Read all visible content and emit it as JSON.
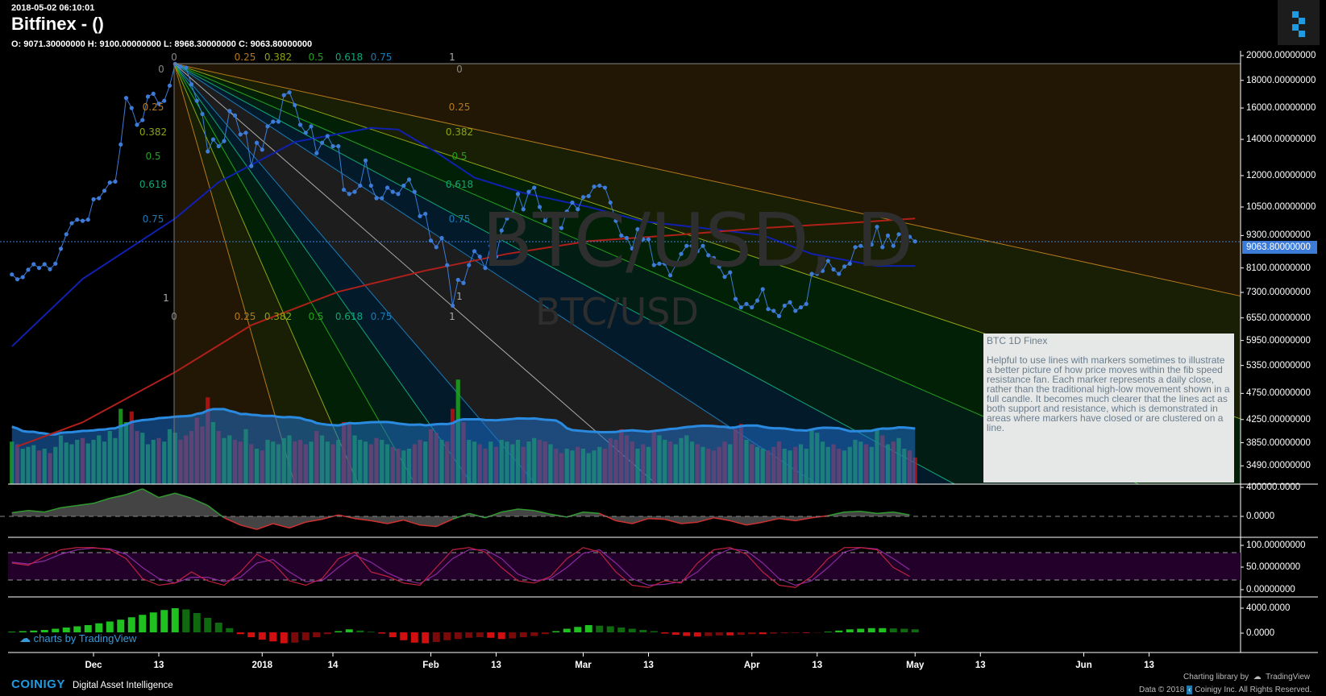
{
  "header": {
    "timestamp": "2018-05-02 06:10:01",
    "title": "Bitfinex -  ()",
    "ohlc": "O: 9071.30000000 H: 9100.00000000 L: 8968.30000000 C: 9063.80000000"
  },
  "watermark": {
    "main": "BTC/USD, D",
    "sub": "BTC/USD"
  },
  "colors": {
    "price_line": "#3d7bd9",
    "ma_fast": "#1020b0",
    "ma_slow": "#b0201a",
    "up": "#1fa51f",
    "down": "#c01010",
    "price_tag": "#3d7bd9"
  },
  "price_axis": {
    "labels": [
      "20000.00000000",
      "18000.00000000",
      "16000.00000000",
      "14000.00000000",
      "12000.00000000",
      "10500.00000000",
      "9300.00000000",
      "8100.00000000",
      "7300.00000000",
      "6550.00000000",
      "5950.00000000",
      "5350.00000000",
      "4750.00000000",
      "4250.00000000",
      "3850.00000000",
      "3490.00000000"
    ],
    "current": "9063.80000000",
    "scale": "log"
  },
  "pane_axes": {
    "osc1": [
      "400000.0000",
      "0.0000"
    ],
    "osc2": [
      "100.00000000",
      "50.00000000",
      "0.00000000"
    ],
    "osc3": [
      "4000.0000",
      "0.0000"
    ]
  },
  "x_axis": {
    "labels": [
      "Dec",
      "13",
      "2018",
      "14",
      "Feb",
      "13",
      "Mar",
      "13",
      "Apr",
      "13",
      "May",
      "13",
      "Jun",
      "13"
    ]
  },
  "fib_fan": {
    "levels": [
      "0",
      "0.25",
      "0.382",
      "0.5",
      "0.618",
      "0.75",
      "1"
    ],
    "colors": {
      "0.25": "#b5791b",
      "0.382": "#8fa314",
      "0.5": "#22a31c",
      "0.618": "#0fa67a",
      "0.75": "#1a7ab5",
      "1": "#aaaaaa",
      "0": "#888888"
    },
    "anchor_start": {
      "date": "2017-12-16",
      "price": 19300
    },
    "anchor_end": {
      "date": "2018-02-05",
      "price": 6900
    }
  },
  "note": {
    "title": "BTC 1D Finex",
    "body": "Helpful to use lines with markers sometimes to illustrate a better picture of how price moves within the fib speed resistance fan. Each marker represents a daily close, rather than the traditional high-low movement shown in a full candle. It becomes much clearer that the lines act as both support and resistance, which is demonstrated in areas where markers have closed or are clustered on a line."
  },
  "chart_data": {
    "type": "line",
    "start_date": "2017-11-16",
    "closes": [
      7880,
      7720,
      7790,
      8040,
      8230,
      8100,
      8230,
      8060,
      8250,
      8790,
      9350,
      9800,
      9950,
      9900,
      9950,
      10850,
      10900,
      11250,
      11650,
      11700,
      13700,
      16700,
      16000,
      14900,
      15200,
      16800,
      17000,
      16300,
      16500,
      17600,
      19300,
      19100,
      19000,
      17700,
      16500,
      15600,
      13300,
      14000,
      13600,
      13900,
      15800,
      15500,
      14300,
      14400,
      12500,
      13800,
      13400,
      14800,
      15100,
      15100,
      16900,
      17100,
      16200,
      14900,
      14400,
      14800,
      13200,
      13800,
      14200,
      13600,
      13600,
      11300,
      11100,
      11200,
      11500,
      12800,
      11500,
      10900,
      10900,
      11400,
      11200,
      11100,
      11500,
      11800,
      11200,
      10100,
      10200,
      9100,
      8850,
      9200,
      8200,
      6900,
      7700,
      7600,
      8200,
      8700,
      8500,
      8100,
      8900,
      8500,
      9500,
      10000,
      10200,
      11100,
      10400,
      11200,
      11400,
      10500,
      9900,
      10200,
      9700,
      9600,
      10300,
      10700,
      10400,
      10950,
      11000,
      11450,
      11500,
      11400,
      10700,
      9900,
      9300,
      9200,
      8800,
      9550,
      9150,
      9150,
      8200,
      8250,
      8250,
      7850,
      8200,
      8600,
      8900,
      8900,
      8700,
      8900,
      8550,
      8450,
      8150,
      7800,
      7950,
      7100,
      6850,
      6950,
      6850,
      7050,
      7400,
      6800,
      6750,
      6600,
      6900,
      7000,
      6750,
      6850,
      6950,
      7900,
      7900,
      8000,
      8350,
      8050,
      7900,
      8150,
      8250,
      8850,
      8900,
      8800,
      8950,
      9650,
      8850,
      9300,
      8900,
      9350,
      9400,
      9250,
      9070
    ],
    "volume": [
      48,
      45,
      40,
      42,
      44,
      38,
      40,
      35,
      42,
      55,
      47,
      45,
      50,
      52,
      46,
      50,
      55,
      48,
      60,
      52,
      85,
      70,
      82,
      60,
      58,
      45,
      50,
      52,
      48,
      62,
      58,
      50,
      55,
      60,
      75,
      65,
      98,
      70,
      60,
      52,
      55,
      50,
      48,
      62,
      45,
      40,
      38,
      50,
      48,
      45,
      52,
      55,
      48,
      50,
      45,
      48,
      60,
      55,
      48,
      45,
      50,
      70,
      68,
      55,
      50,
      48,
      45,
      52,
      50,
      45,
      42,
      40,
      38,
      40,
      45,
      50,
      48,
      62,
      58,
      50,
      48,
      85,
      118,
      70,
      50,
      48,
      45,
      40,
      48,
      42,
      50,
      48,
      45,
      50,
      42,
      48,
      52,
      50,
      48,
      45,
      40,
      35,
      40,
      38,
      42,
      40,
      35,
      38,
      42,
      40,
      52,
      50,
      62,
      55,
      48,
      40,
      45,
      42,
      60,
      55,
      50,
      48,
      45,
      52,
      55,
      48,
      45,
      42,
      40,
      38,
      42,
      48,
      45,
      62,
      68,
      50,
      45,
      42,
      40,
      38,
      42,
      48,
      40,
      38,
      42,
      45,
      40,
      62,
      58,
      48,
      42,
      45,
      40,
      38,
      42,
      50,
      48,
      45,
      42,
      62,
      55,
      45,
      48,
      52,
      40,
      38,
      30
    ],
    "ma_fast": [
      [
        "2017-11-16",
        5800
      ],
      [
        "2017-11-29",
        7730
      ],
      [
        "2017-12-16",
        10000
      ],
      [
        "2017-12-24",
        11670
      ],
      [
        "2018-01-07",
        13850
      ],
      [
        "2018-01-21",
        14700
      ],
      [
        "2018-01-26",
        14600
      ],
      [
        "2018-02-02",
        13250
      ],
      [
        "2018-02-09",
        11900
      ],
      [
        "2018-02-18",
        11150
      ],
      [
        "2018-03-02",
        10500
      ],
      [
        "2018-03-12",
        9880
      ],
      [
        "2018-03-23",
        9600
      ],
      [
        "2018-04-03",
        9310
      ],
      [
        "2018-04-12",
        8600
      ],
      [
        "2018-04-24",
        8170
      ],
      [
        "2018-05-01",
        8170
      ]
    ],
    "ma_slow": [
      [
        "2017-11-17",
        3790
      ],
      [
        "2017-11-29",
        4200
      ],
      [
        "2017-12-16",
        5200
      ],
      [
        "2017-12-30",
        6350
      ],
      [
        "2018-01-15",
        7320
      ],
      [
        "2018-01-31",
        8010
      ],
      [
        "2018-02-15",
        8600
      ],
      [
        "2018-03-02",
        9080
      ],
      [
        "2018-03-18",
        9320
      ],
      [
        "2018-04-03",
        9600
      ],
      [
        "2018-04-18",
        9800
      ],
      [
        "2018-05-01",
        10000
      ]
    ],
    "osc1_step_days": 3,
    "osc1": [
      50000,
      80000,
      60000,
      120000,
      150000,
      180000,
      250000,
      300000,
      380000,
      260000,
      320000,
      250000,
      150000,
      -20000,
      -120000,
      -180000,
      -100000,
      -160000,
      -80000,
      -40000,
      20000,
      -30000,
      -60000,
      -100000,
      -50000,
      -120000,
      -140000,
      -40000,
      40000,
      -20000,
      60000,
      100000,
      80000,
      30000,
      -10000,
      60000,
      40000,
      -60000,
      -100000,
      -30000,
      -40000,
      -100000,
      -80000,
      -20000,
      -60000,
      -120000,
      -80000,
      -30000,
      -60000,
      -20000,
      10000,
      60000,
      70000,
      40000,
      60000,
      20000
    ],
    "osc2_step_days": 3,
    "osc2_k": [
      60,
      55,
      75,
      90,
      95,
      95,
      90,
      70,
      25,
      10,
      15,
      40,
      20,
      10,
      40,
      80,
      60,
      20,
      10,
      25,
      70,
      85,
      40,
      30,
      15,
      10,
      50,
      90,
      95,
      85,
      50,
      20,
      15,
      30,
      70,
      95,
      85,
      40,
      10,
      5,
      20,
      15,
      60,
      90,
      95,
      80,
      40,
      10,
      5,
      30,
      70,
      95,
      95,
      90,
      50,
      30
    ],
    "osc2_d": [
      62,
      58,
      65,
      80,
      90,
      94,
      92,
      80,
      50,
      25,
      15,
      28,
      28,
      18,
      28,
      60,
      68,
      40,
      18,
      20,
      50,
      78,
      62,
      38,
      22,
      14,
      35,
      70,
      90,
      90,
      70,
      35,
      20,
      25,
      50,
      82,
      90,
      60,
      25,
      10,
      12,
      18,
      40,
      75,
      92,
      88,
      60,
      25,
      10,
      20,
      50,
      85,
      95,
      92,
      70,
      45
    ],
    "osc3_step_days": 2,
    "osc3": [
      100,
      200,
      300,
      400,
      600,
      800,
      1000,
      1200,
      1500,
      1800,
      2100,
      2500,
      2900,
      3300,
      3700,
      4000,
      3800,
      3200,
      2400,
      1600,
      700,
      -300,
      -800,
      -1200,
      -1500,
      -1800,
      -1700,
      -1300,
      -800,
      -300,
      200,
      500,
      300,
      100,
      -200,
      -800,
      -1300,
      -1700,
      -1800,
      -1600,
      -1300,
      -1100,
      -900,
      -800,
      -900,
      -1100,
      -1000,
      -800,
      -600,
      -300,
      200,
      600,
      900,
      1200,
      1100,
      1000,
      800,
      600,
      400,
      200,
      -200,
      -400,
      -600,
      -700,
      -600,
      -500,
      -500,
      -400,
      -300,
      -300,
      -200,
      -150,
      -100,
      -100,
      -50,
      100,
      300,
      500,
      600,
      700,
      700,
      650,
      600,
      500
    ]
  },
  "footer": {
    "tv_brand": "charts by TradingView",
    "coinigy": "COINIGY",
    "tagline": "Digital Asset Intelligence",
    "charting_by": "Charting library by",
    "tradingview": "TradingView",
    "data_copyright": "Data © 2018",
    "rights": "Coinigy Inc. All Rights Reserved."
  }
}
